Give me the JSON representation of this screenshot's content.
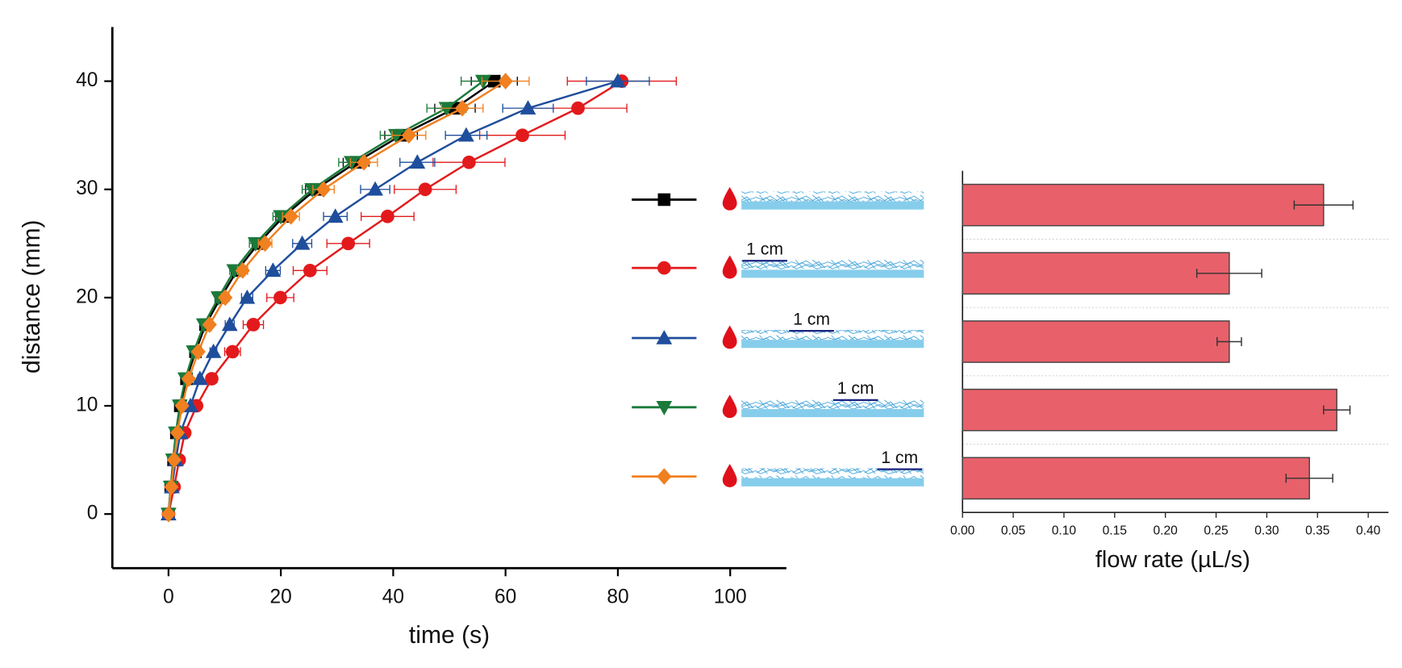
{
  "chart_data": [
    {
      "type": "line",
      "xlabel": "time (s)",
      "ylabel": "distance (mm)",
      "xlim": [
        -10,
        110
      ],
      "xticks": [
        0,
        20,
        40,
        60,
        80,
        100
      ],
      "ylim": [
        -5,
        45
      ],
      "yticks": [
        0,
        10,
        20,
        30,
        40
      ],
      "series": [
        {
          "color": "#000000",
          "marker": "square",
          "x": [
            0,
            0.4,
            0.9,
            1.4,
            2.1,
            3.2,
            4.8,
            6.6,
            9.3,
            12.2,
            16,
            20.5,
            26.2,
            33.4,
            41.4,
            51,
            58
          ],
          "values": [
            0,
            2.5,
            5,
            7.5,
            10,
            12.5,
            15,
            17.5,
            20,
            22.5,
            25,
            27.5,
            30,
            32.5,
            35,
            37.5,
            40
          ],
          "errors": [
            0,
            0,
            0.1,
            0.1,
            0.1,
            0.2,
            0.3,
            0.5,
            0.7,
            0.9,
            1.1,
            1.4,
            1.8,
            2.3,
            2.9,
            3.6,
            4.1
          ]
        },
        {
          "color": "#e31a1c",
          "marker": "circle",
          "x": [
            0,
            1,
            1.9,
            2.9,
            5,
            7.7,
            11.4,
            15.1,
            19.9,
            25.2,
            32,
            39,
            45.7,
            53.5,
            63,
            72.9,
            80.7
          ],
          "values": [
            0,
            2.5,
            5,
            7.5,
            10,
            12.5,
            15,
            17.5,
            20,
            22.5,
            25,
            27.5,
            30,
            32.5,
            35,
            37.5,
            40
          ],
          "errors": [
            0,
            0.1,
            0.2,
            0.3,
            0.6,
            0.9,
            1.4,
            1.8,
            2.4,
            3,
            3.8,
            4.7,
            5.5,
            6.4,
            7.6,
            8.7,
            9.7
          ]
        },
        {
          "color": "#1f4e9c",
          "marker": "triangle",
          "x": [
            0,
            0.6,
            1.3,
            2.1,
            3.9,
            5.6,
            8,
            10.9,
            14,
            18.6,
            23.8,
            29.7,
            36.8,
            44.3,
            53,
            64,
            80
          ],
          "values": [
            0,
            2.5,
            5,
            7.5,
            10,
            12.5,
            15,
            17.5,
            20,
            22.5,
            25,
            27.5,
            30,
            32.5,
            35,
            37.5,
            40
          ],
          "errors": [
            0,
            0,
            0.1,
            0.1,
            0.3,
            0.4,
            0.6,
            0.8,
            1,
            1.3,
            1.7,
            2.1,
            2.6,
            3.1,
            3.7,
            4.5,
            5.6
          ]
        },
        {
          "color": "#1a7a3a",
          "marker": "triangle-down",
          "x": [
            0,
            0.4,
            0.8,
            1.3,
            2,
            3,
            4.5,
            6.3,
            8.9,
            11.7,
            15.5,
            20,
            25.6,
            32.6,
            40.5,
            49.5,
            56
          ],
          "values": [
            0,
            2.5,
            5,
            7.5,
            10,
            12.5,
            15,
            17.5,
            20,
            22.5,
            25,
            27.5,
            30,
            32.5,
            35,
            37.5,
            40
          ],
          "errors": [
            0,
            0,
            0.1,
            0.1,
            0.1,
            0.2,
            0.3,
            0.4,
            0.6,
            0.8,
            1.1,
            1.4,
            1.8,
            2.3,
            2.8,
            3.5,
            3.9
          ]
        },
        {
          "color": "#f08020",
          "marker": "diamond",
          "x": [
            0,
            0.5,
            1,
            1.6,
            2.4,
            3.6,
            5.3,
            7.3,
            10.1,
            13.2,
            17.2,
            21.8,
            27.6,
            34.8,
            42.8,
            52.3,
            60
          ],
          "values": [
            0,
            2.5,
            5,
            7.5,
            10,
            12.5,
            15,
            17.5,
            20,
            22.5,
            25,
            27.5,
            30,
            32.5,
            35,
            37.5,
            40
          ],
          "errors": [
            0,
            0,
            0.1,
            0.1,
            0.2,
            0.3,
            0.4,
            0.5,
            0.7,
            0.9,
            1.2,
            1.5,
            1.9,
            2.4,
            3,
            3.7,
            4.2
          ]
        }
      ],
      "legend_scale_labels": [
        "1 cm",
        "1 cm",
        "1 cm",
        "1 cm"
      ]
    },
    {
      "type": "bar",
      "orientation": "horizontal",
      "xlabel": "flow rate (µL/s)",
      "categories": [
        null,
        null,
        null,
        null,
        null
      ],
      "values": [
        0.356,
        0.263,
        0.263,
        0.369,
        0.342
      ],
      "errors": [
        0.029,
        0.032,
        0.012,
        0.013,
        0.023
      ],
      "color": "#e8606a",
      "xlim": [
        0,
        0.42
      ],
      "xticks": [
        {
          "value": 0,
          "label": "0.00"
        },
        {
          "value": 0.05,
          "label": "0.05"
        },
        {
          "value": 0.1,
          "label": "0.10"
        },
        {
          "value": 0.15,
          "label": "0.15"
        },
        {
          "value": 0.2,
          "label": "0.20"
        },
        {
          "value": 0.25,
          "label": "0.25"
        },
        {
          "value": 0.3,
          "label": "0.30"
        },
        {
          "value": 0.35,
          "label": "0.35"
        },
        {
          "value": 0.4,
          "label": "0.40"
        }
      ],
      "grid": true
    }
  ]
}
